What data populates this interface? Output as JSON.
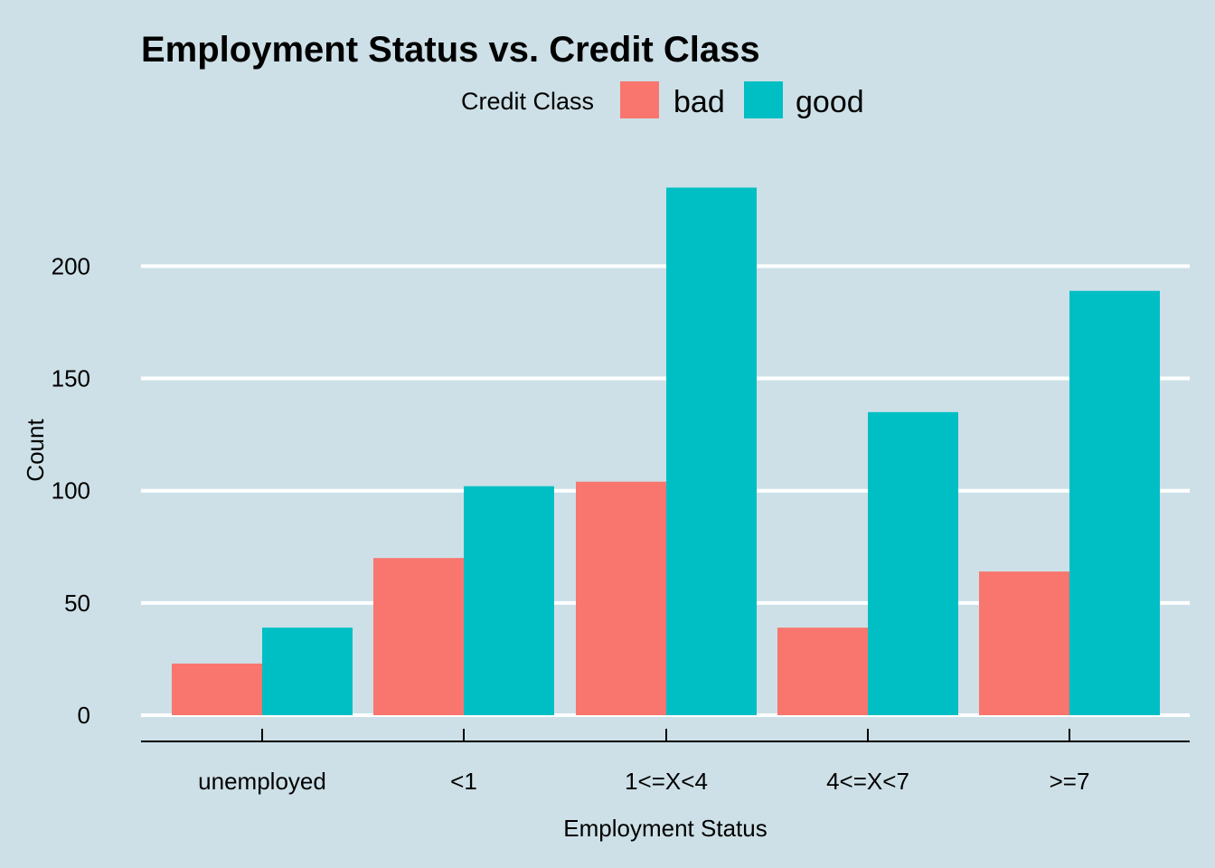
{
  "chart_data": {
    "type": "bar",
    "title": "Employment Status vs. Credit Class",
    "xlabel": "Employment Status",
    "ylabel": "Count",
    "categories": [
      "unemployed",
      "<1",
      "1<=X<4",
      "4<=X<7",
      ">=7"
    ],
    "series": [
      {
        "name": "bad",
        "color": "#F8766D",
        "values": [
          23,
          70,
          104,
          39,
          64
        ]
      },
      {
        "name": "good",
        "color": "#00BFC4",
        "values": [
          39,
          102,
          235,
          135,
          189
        ]
      }
    ],
    "ylim": [
      0,
      246
    ],
    "yticks": [
      0,
      50,
      100,
      150,
      200
    ],
    "legend": {
      "title": "Credit Class",
      "placement": "top"
    },
    "grid": "horizontal-major",
    "background": "#CDE0E7",
    "gridColor": "#FFFFFF"
  }
}
